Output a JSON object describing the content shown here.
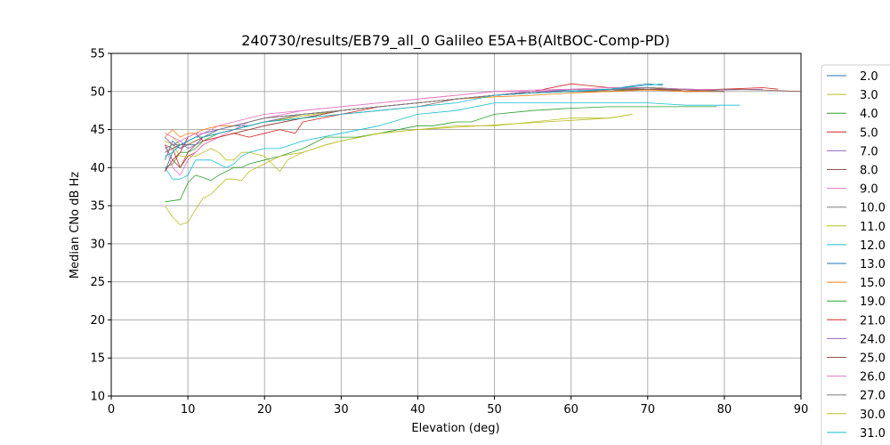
{
  "chart_data": {
    "type": "line",
    "title": "240730/results/EB79_all_0 Galileo E5A+B(AltBOC-Comp-PD)",
    "xlabel": "Elevation (deg)",
    "ylabel": "Median CNo dB Hz",
    "xlim": [
      0,
      90
    ],
    "ylim": [
      10,
      55
    ],
    "xticks": [
      "0",
      "10",
      "20",
      "30",
      "40",
      "50",
      "60",
      "70",
      "80",
      "90"
    ],
    "yticks": [
      "10",
      "15",
      "20",
      "25",
      "30",
      "35",
      "40",
      "45",
      "50",
      "55"
    ],
    "grid": true,
    "legend_position": "right, outside plot (clipped)",
    "series": [
      {
        "name": "2.0",
        "color": "#1f77b4",
        "x": [
          7,
          8,
          9,
          10,
          11,
          12,
          14,
          16,
          18,
          20,
          25,
          30,
          35,
          40,
          45,
          50,
          55,
          60,
          65,
          70,
          72
        ],
        "y": [
          41,
          43.5,
          42.5,
          43,
          43,
          44,
          45,
          45.5,
          45.5,
          46,
          47,
          47.5,
          48,
          48.5,
          49,
          49.5,
          50,
          50.2,
          50.3,
          51,
          50.8
        ]
      },
      {
        "name": "3.0",
        "color": "#bcbd22",
        "x": [
          7,
          8,
          9,
          10,
          11,
          12,
          14,
          16,
          18,
          20,
          25,
          30,
          35,
          40,
          45,
          50,
          55,
          60,
          65,
          70,
          72
        ],
        "y": [
          44.5,
          44,
          43,
          43,
          43.5,
          44,
          44.5,
          45,
          45.5,
          46,
          46.8,
          47.5,
          48,
          48.5,
          49,
          49.5,
          49.8,
          50,
          50.3,
          50.5,
          50.5
        ]
      },
      {
        "name": "4.0",
        "color": "#2ca02c",
        "x": [
          7,
          8,
          9,
          10,
          11,
          12,
          14,
          16,
          18,
          20,
          25,
          30,
          35,
          40,
          45,
          50,
          55,
          60,
          65,
          70,
          75,
          80
        ],
        "y": [
          40,
          40.5,
          42,
          42,
          42.5,
          43.5,
          44.5,
          45,
          45.5,
          46,
          46.5,
          47.5,
          48,
          48.5,
          49,
          49.5,
          49.8,
          50,
          50,
          50.5,
          50,
          50.2
        ]
      },
      {
        "name": "5.0",
        "color": "#d62728",
        "x": [
          7,
          8,
          9,
          10,
          11,
          12,
          14,
          16,
          18,
          20,
          25,
          30,
          35,
          40,
          45,
          50,
          55,
          60,
          65,
          70,
          75,
          80,
          85,
          87
        ],
        "y": [
          42,
          42.5,
          40,
          41.5,
          42,
          43,
          44,
          44.5,
          45,
          45.5,
          46.5,
          47.5,
          48,
          48.5,
          49,
          49.5,
          50,
          51,
          50.5,
          50.5,
          50,
          50.3,
          50.5,
          50.3
        ]
      },
      {
        "name": "7.0",
        "color": "#9467bd",
        "x": [
          7,
          8,
          9,
          10,
          11,
          12,
          14,
          16,
          18,
          20,
          25,
          30,
          35,
          40,
          45,
          50,
          55,
          60,
          65,
          70,
          75,
          80,
          85
        ],
        "y": [
          44,
          43,
          43.5,
          42.5,
          43,
          44,
          44.5,
          45,
          45.5,
          46,
          47,
          47.5,
          48,
          48.5,
          49,
          49.5,
          50,
          50,
          50.2,
          50.5,
          50.3,
          50.2,
          50.3
        ]
      },
      {
        "name": "8.0",
        "color": "#8c564b",
        "x": [
          7,
          8,
          9,
          10,
          11,
          12,
          14,
          16,
          18,
          20,
          25,
          30,
          35,
          40,
          45,
          50,
          55,
          60,
          65,
          70,
          75,
          80,
          85,
          90
        ],
        "y": [
          43,
          41,
          40,
          42,
          43,
          43.5,
          44,
          44.5,
          45,
          45.5,
          46.5,
          47.5,
          48,
          48.5,
          49,
          49.5,
          49.8,
          50,
          50.3,
          50.5,
          50.2,
          50.3,
          50.2,
          50
        ]
      },
      {
        "name": "9.0",
        "color": "#e377c2",
        "x": [
          7,
          8,
          9,
          10,
          11,
          12,
          14,
          16,
          18,
          20,
          25,
          30,
          35,
          40,
          45,
          50,
          55,
          60,
          65,
          70,
          75,
          80
        ],
        "y": [
          43,
          40,
          39,
          41,
          42,
          43,
          44,
          45,
          46,
          46.5,
          47.5,
          48,
          48.5,
          49,
          49.5,
          50,
          50.2,
          50.3,
          50.2,
          50.5,
          50.3,
          50.2
        ]
      },
      {
        "name": "10.0",
        "color": "#7f7f7f",
        "x": [
          7,
          8,
          9,
          10,
          11,
          12,
          14,
          16,
          18,
          20,
          25,
          30,
          35,
          40,
          45,
          50,
          55,
          60,
          65,
          70,
          75,
          80
        ],
        "y": [
          42,
          42.5,
          43,
          43.5,
          44,
          44,
          44.5,
          45,
          45.5,
          46,
          47,
          47.5,
          48,
          48.5,
          49,
          49.5,
          49.8,
          50,
          50,
          50.3,
          50,
          50
        ]
      },
      {
        "name": "11.0",
        "color": "#bcbd22",
        "x": [
          7,
          8,
          9,
          10,
          11,
          12,
          13,
          14,
          15,
          16,
          17,
          18,
          20,
          22,
          23,
          25,
          28,
          30,
          35,
          40,
          45,
          50,
          55,
          60,
          65,
          68
        ],
        "y": [
          43.5,
          43,
          41.5,
          41.5,
          41.5,
          42,
          42.5,
          42,
          41,
          41,
          42,
          42,
          41.5,
          39.5,
          41,
          42,
          43,
          43.5,
          44.5,
          45,
          45.5,
          45.5,
          46,
          46.5,
          46.5,
          47
        ]
      },
      {
        "name": "12.0",
        "color": "#17becf",
        "x": [
          7,
          8,
          9,
          10,
          11,
          12,
          13,
          14,
          15,
          16,
          17,
          18,
          20,
          22,
          25,
          30,
          35,
          40,
          45,
          50,
          55,
          60,
          65,
          70,
          75,
          80,
          82
        ],
        "y": [
          40,
          38.5,
          38.5,
          39,
          41,
          41,
          41,
          40.5,
          40,
          40.5,
          41.5,
          42,
          42.5,
          42.5,
          43.5,
          44.5,
          45.5,
          47,
          47.5,
          48.5,
          48.5,
          48.5,
          48.5,
          48.5,
          48.2,
          48.2,
          48.2
        ]
      },
      {
        "name": "13.0",
        "color": "#1f77b4",
        "x": [
          7,
          8,
          9,
          10,
          11,
          12,
          14,
          16,
          18,
          20,
          25,
          30,
          35,
          40,
          45,
          50,
          55,
          60,
          65,
          70,
          75,
          78
        ],
        "y": [
          39.5,
          42,
          43,
          43.5,
          44,
          44.5,
          45,
          45.5,
          46,
          46.5,
          47,
          47.5,
          48,
          48.5,
          49,
          49.5,
          50,
          50,
          50.2,
          50.5,
          50.3,
          50
        ]
      },
      {
        "name": "15.0",
        "color": "#ff7f0e",
        "x": [
          7,
          8,
          9,
          10,
          11,
          12,
          14,
          16,
          18,
          20,
          25,
          30,
          35,
          40,
          45,
          50,
          55,
          60,
          65,
          70,
          75,
          80
        ],
        "y": [
          44,
          45,
          44,
          44.5,
          44.5,
          45,
          45.5,
          45.5,
          46,
          46.5,
          47,
          47.5,
          48,
          48.5,
          49,
          49.3,
          49.5,
          49.8,
          50,
          50.2,
          50,
          50
        ]
      },
      {
        "name": "19.0",
        "color": "#2ca02c",
        "x": [
          7,
          9,
          10,
          11,
          12,
          13,
          14,
          15,
          16,
          17,
          18,
          20,
          22,
          25,
          27,
          28,
          30,
          32,
          35,
          40,
          42,
          45,
          47,
          50,
          55,
          60,
          65,
          70,
          75,
          79
        ],
        "y": [
          35.5,
          35.8,
          38,
          39,
          38.7,
          38.3,
          39,
          39.5,
          40,
          40,
          40.5,
          41,
          41.5,
          42.5,
          43.5,
          44,
          44,
          44,
          44.5,
          45.5,
          45.5,
          46,
          46,
          47,
          47.5,
          47.8,
          48,
          48,
          48,
          48
        ]
      },
      {
        "name": "21.0",
        "color": "#d62728",
        "x": [
          7,
          8,
          9,
          10,
          11,
          12,
          14,
          16,
          18,
          20,
          22,
          24,
          25,
          30,
          35,
          40,
          45,
          50,
          55,
          60,
          65,
          70,
          75,
          80
        ],
        "y": [
          39.5,
          41,
          42,
          44,
          44.5,
          43.5,
          44,
          44.5,
          44,
          44.5,
          45,
          44.5,
          46,
          47,
          48,
          48.5,
          49,
          49.5,
          50,
          50,
          50.2,
          50.5,
          50.2,
          50
        ]
      },
      {
        "name": "24.0",
        "color": "#9467bd",
        "x": [
          7,
          8,
          9,
          10,
          11,
          12,
          14,
          16,
          18,
          20,
          25,
          30,
          35,
          40,
          45,
          50,
          55,
          60,
          65,
          70,
          75
        ],
        "y": [
          44,
          43,
          42.5,
          43.5,
          44,
          44.5,
          45,
          45.5,
          46,
          46.5,
          47,
          47.5,
          48,
          48.5,
          49,
          49.5,
          50,
          50,
          50.3,
          50.5,
          50.3
        ]
      },
      {
        "name": "25.0",
        "color": "#8c564b",
        "x": [
          7,
          8,
          9,
          10,
          11,
          12,
          14,
          16,
          18,
          20,
          25,
          30,
          35,
          40,
          45,
          50,
          55,
          60,
          65,
          70,
          75,
          80
        ],
        "y": [
          43,
          42.5,
          43,
          43,
          43.5,
          44,
          44.5,
          45,
          45.5,
          46,
          46.5,
          47,
          47.5,
          48,
          49,
          49.5,
          49.8,
          50,
          50.2,
          50.3,
          50.2,
          50
        ]
      },
      {
        "name": "26.0",
        "color": "#e377c2",
        "x": [
          7,
          8,
          9,
          10,
          11,
          12,
          14,
          16,
          18,
          20,
          25,
          30,
          35,
          40,
          45,
          50,
          55,
          60,
          65,
          70,
          75,
          80
        ],
        "y": [
          44.5,
          44,
          43.5,
          44,
          44.5,
          44.5,
          45.5,
          46,
          46.5,
          47,
          47.5,
          48,
          48.5,
          49,
          49.5,
          50,
          50,
          50.3,
          50.5,
          50.5,
          50.3,
          50.2
        ]
      },
      {
        "name": "27.0",
        "color": "#7f7f7f",
        "x": [
          7,
          8,
          9,
          10,
          11,
          12,
          14,
          16,
          18,
          20,
          25,
          30,
          35,
          40,
          45,
          50,
          55,
          60,
          65,
          70,
          75,
          80
        ],
        "y": [
          42.5,
          43,
          43,
          43.5,
          44,
          44,
          45,
          45.5,
          46,
          46.5,
          47,
          47.5,
          48,
          48.5,
          49,
          49.5,
          49.8,
          50,
          50.2,
          50.5,
          50.2,
          50
        ]
      },
      {
        "name": "30.0",
        "color": "#bcbd22",
        "x": [
          7,
          8,
          9,
          10,
          11,
          12,
          13,
          14,
          15,
          16,
          17,
          18,
          20,
          22,
          25,
          28,
          30,
          35,
          40,
          45,
          50,
          55,
          60,
          65,
          68
        ],
        "y": [
          35,
          33.5,
          32.5,
          32.8,
          34.5,
          36,
          36.5,
          37.5,
          38.5,
          38.5,
          38.3,
          39.5,
          40.5,
          41.5,
          42,
          43,
          43.5,
          44.5,
          45,
          45.3,
          45.6,
          45.9,
          46.2,
          46.5,
          47
        ]
      },
      {
        "name": "31.0",
        "color": "#17becf",
        "x": [
          7,
          8,
          9,
          10,
          11,
          12,
          14,
          16,
          18,
          20,
          25,
          30,
          35,
          40,
          45,
          50,
          55,
          60,
          65,
          70,
          72
        ],
        "y": [
          41.5,
          42,
          43,
          43.5,
          44,
          44,
          44.5,
          45,
          45.5,
          46,
          46.5,
          47,
          47.5,
          48,
          48.5,
          49.5,
          49.8,
          50,
          50.3,
          50.8,
          51
        ]
      }
    ]
  }
}
